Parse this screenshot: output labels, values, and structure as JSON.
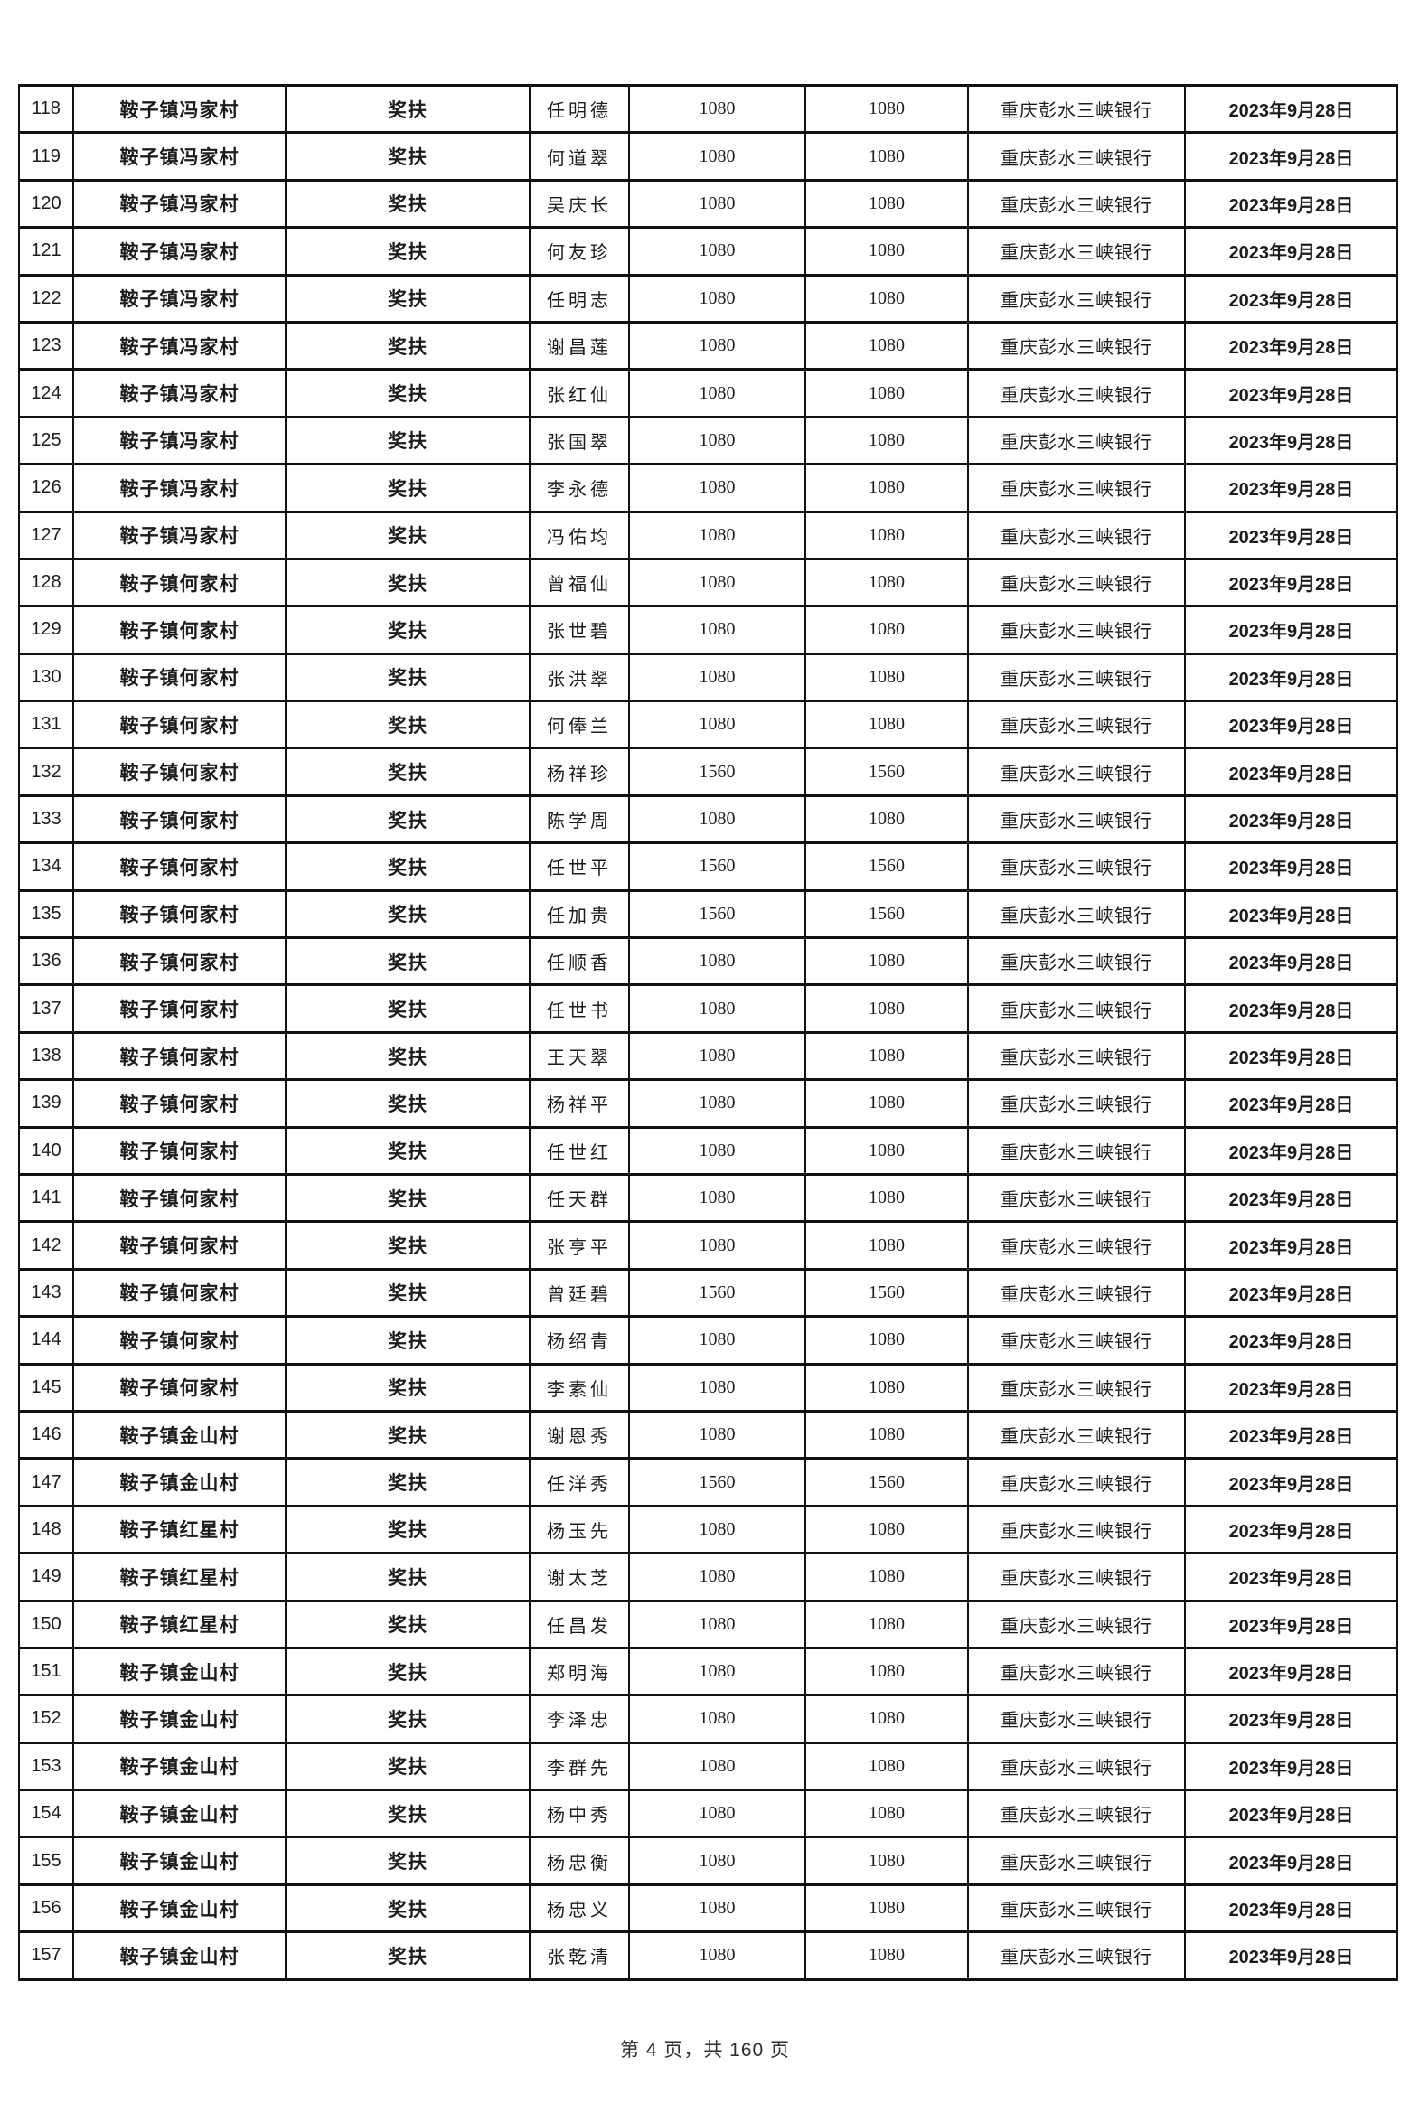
{
  "page": {
    "footer": "第 4 页，共 160 页"
  },
  "table": {
    "column_keys": [
      "num",
      "village",
      "type",
      "name",
      "amount1",
      "amount2",
      "bank",
      "date"
    ],
    "rows": [
      {
        "num": "118",
        "village": "鞍子镇冯家村",
        "type": "奖扶",
        "name": "任明德",
        "amount1": "1080",
        "amount2": "1080",
        "bank": "重庆彭水三峡银行",
        "date": "2023年9月28日"
      },
      {
        "num": "119",
        "village": "鞍子镇冯家村",
        "type": "奖扶",
        "name": "何道翠",
        "amount1": "1080",
        "amount2": "1080",
        "bank": "重庆彭水三峡银行",
        "date": "2023年9月28日"
      },
      {
        "num": "120",
        "village": "鞍子镇冯家村",
        "type": "奖扶",
        "name": "吴庆长",
        "amount1": "1080",
        "amount2": "1080",
        "bank": "重庆彭水三峡银行",
        "date": "2023年9月28日"
      },
      {
        "num": "121",
        "village": "鞍子镇冯家村",
        "type": "奖扶",
        "name": "何友珍",
        "amount1": "1080",
        "amount2": "1080",
        "bank": "重庆彭水三峡银行",
        "date": "2023年9月28日"
      },
      {
        "num": "122",
        "village": "鞍子镇冯家村",
        "type": "奖扶",
        "name": "任明志",
        "amount1": "1080",
        "amount2": "1080",
        "bank": "重庆彭水三峡银行",
        "date": "2023年9月28日"
      },
      {
        "num": "123",
        "village": "鞍子镇冯家村",
        "type": "奖扶",
        "name": "谢昌莲",
        "amount1": "1080",
        "amount2": "1080",
        "bank": "重庆彭水三峡银行",
        "date": "2023年9月28日"
      },
      {
        "num": "124",
        "village": "鞍子镇冯家村",
        "type": "奖扶",
        "name": "张红仙",
        "amount1": "1080",
        "amount2": "1080",
        "bank": "重庆彭水三峡银行",
        "date": "2023年9月28日"
      },
      {
        "num": "125",
        "village": "鞍子镇冯家村",
        "type": "奖扶",
        "name": "张国翠",
        "amount1": "1080",
        "amount2": "1080",
        "bank": "重庆彭水三峡银行",
        "date": "2023年9月28日"
      },
      {
        "num": "126",
        "village": "鞍子镇冯家村",
        "type": "奖扶",
        "name": "李永德",
        "amount1": "1080",
        "amount2": "1080",
        "bank": "重庆彭水三峡银行",
        "date": "2023年9月28日"
      },
      {
        "num": "127",
        "village": "鞍子镇冯家村",
        "type": "奖扶",
        "name": "冯佑均",
        "amount1": "1080",
        "amount2": "1080",
        "bank": "重庆彭水三峡银行",
        "date": "2023年9月28日"
      },
      {
        "num": "128",
        "village": "鞍子镇何家村",
        "type": "奖扶",
        "name": "曾福仙",
        "amount1": "1080",
        "amount2": "1080",
        "bank": "重庆彭水三峡银行",
        "date": "2023年9月28日"
      },
      {
        "num": "129",
        "village": "鞍子镇何家村",
        "type": "奖扶",
        "name": "张世碧",
        "amount1": "1080",
        "amount2": "1080",
        "bank": "重庆彭水三峡银行",
        "date": "2023年9月28日"
      },
      {
        "num": "130",
        "village": "鞍子镇何家村",
        "type": "奖扶",
        "name": "张洪翠",
        "amount1": "1080",
        "amount2": "1080",
        "bank": "重庆彭水三峡银行",
        "date": "2023年9月28日"
      },
      {
        "num": "131",
        "village": "鞍子镇何家村",
        "type": "奖扶",
        "name": "何俸兰",
        "amount1": "1080",
        "amount2": "1080",
        "bank": "重庆彭水三峡银行",
        "date": "2023年9月28日"
      },
      {
        "num": "132",
        "village": "鞍子镇何家村",
        "type": "奖扶",
        "name": "杨祥珍",
        "amount1": "1560",
        "amount2": "1560",
        "bank": "重庆彭水三峡银行",
        "date": "2023年9月28日"
      },
      {
        "num": "133",
        "village": "鞍子镇何家村",
        "type": "奖扶",
        "name": "陈学周",
        "amount1": "1080",
        "amount2": "1080",
        "bank": "重庆彭水三峡银行",
        "date": "2023年9月28日"
      },
      {
        "num": "134",
        "village": "鞍子镇何家村",
        "type": "奖扶",
        "name": "任世平",
        "amount1": "1560",
        "amount2": "1560",
        "bank": "重庆彭水三峡银行",
        "date": "2023年9月28日"
      },
      {
        "num": "135",
        "village": "鞍子镇何家村",
        "type": "奖扶",
        "name": "任加贵",
        "amount1": "1560",
        "amount2": "1560",
        "bank": "重庆彭水三峡银行",
        "date": "2023年9月28日"
      },
      {
        "num": "136",
        "village": "鞍子镇何家村",
        "type": "奖扶",
        "name": "任顺香",
        "amount1": "1080",
        "amount2": "1080",
        "bank": "重庆彭水三峡银行",
        "date": "2023年9月28日"
      },
      {
        "num": "137",
        "village": "鞍子镇何家村",
        "type": "奖扶",
        "name": "任世书",
        "amount1": "1080",
        "amount2": "1080",
        "bank": "重庆彭水三峡银行",
        "date": "2023年9月28日"
      },
      {
        "num": "138",
        "village": "鞍子镇何家村",
        "type": "奖扶",
        "name": "王天翠",
        "amount1": "1080",
        "amount2": "1080",
        "bank": "重庆彭水三峡银行",
        "date": "2023年9月28日"
      },
      {
        "num": "139",
        "village": "鞍子镇何家村",
        "type": "奖扶",
        "name": "杨祥平",
        "amount1": "1080",
        "amount2": "1080",
        "bank": "重庆彭水三峡银行",
        "date": "2023年9月28日"
      },
      {
        "num": "140",
        "village": "鞍子镇何家村",
        "type": "奖扶",
        "name": "任世红",
        "amount1": "1080",
        "amount2": "1080",
        "bank": "重庆彭水三峡银行",
        "date": "2023年9月28日"
      },
      {
        "num": "141",
        "village": "鞍子镇何家村",
        "type": "奖扶",
        "name": "任天群",
        "amount1": "1080",
        "amount2": "1080",
        "bank": "重庆彭水三峡银行",
        "date": "2023年9月28日"
      },
      {
        "num": "142",
        "village": "鞍子镇何家村",
        "type": "奖扶",
        "name": "张亨平",
        "amount1": "1080",
        "amount2": "1080",
        "bank": "重庆彭水三峡银行",
        "date": "2023年9月28日"
      },
      {
        "num": "143",
        "village": "鞍子镇何家村",
        "type": "奖扶",
        "name": "曾廷碧",
        "amount1": "1560",
        "amount2": "1560",
        "bank": "重庆彭水三峡银行",
        "date": "2023年9月28日"
      },
      {
        "num": "144",
        "village": "鞍子镇何家村",
        "type": "奖扶",
        "name": "杨绍青",
        "amount1": "1080",
        "amount2": "1080",
        "bank": "重庆彭水三峡银行",
        "date": "2023年9月28日"
      },
      {
        "num": "145",
        "village": "鞍子镇何家村",
        "type": "奖扶",
        "name": "李素仙",
        "amount1": "1080",
        "amount2": "1080",
        "bank": "重庆彭水三峡银行",
        "date": "2023年9月28日"
      },
      {
        "num": "146",
        "village": "鞍子镇金山村",
        "type": "奖扶",
        "name": "谢恩秀",
        "amount1": "1080",
        "amount2": "1080",
        "bank": "重庆彭水三峡银行",
        "date": "2023年9月28日"
      },
      {
        "num": "147",
        "village": "鞍子镇金山村",
        "type": "奖扶",
        "name": "任洋秀",
        "amount1": "1560",
        "amount2": "1560",
        "bank": "重庆彭水三峡银行",
        "date": "2023年9月28日"
      },
      {
        "num": "148",
        "village": "鞍子镇红星村",
        "type": "奖扶",
        "name": "杨玉先",
        "amount1": "1080",
        "amount2": "1080",
        "bank": "重庆彭水三峡银行",
        "date": "2023年9月28日"
      },
      {
        "num": "149",
        "village": "鞍子镇红星村",
        "type": "奖扶",
        "name": "谢太芝",
        "amount1": "1080",
        "amount2": "1080",
        "bank": "重庆彭水三峡银行",
        "date": "2023年9月28日"
      },
      {
        "num": "150",
        "village": "鞍子镇红星村",
        "type": "奖扶",
        "name": "任昌发",
        "amount1": "1080",
        "amount2": "1080",
        "bank": "重庆彭水三峡银行",
        "date": "2023年9月28日"
      },
      {
        "num": "151",
        "village": "鞍子镇金山村",
        "type": "奖扶",
        "name": "郑明海",
        "amount1": "1080",
        "amount2": "1080",
        "bank": "重庆彭水三峡银行",
        "date": "2023年9月28日"
      },
      {
        "num": "152",
        "village": "鞍子镇金山村",
        "type": "奖扶",
        "name": "李泽忠",
        "amount1": "1080",
        "amount2": "1080",
        "bank": "重庆彭水三峡银行",
        "date": "2023年9月28日"
      },
      {
        "num": "153",
        "village": "鞍子镇金山村",
        "type": "奖扶",
        "name": "李群先",
        "amount1": "1080",
        "amount2": "1080",
        "bank": "重庆彭水三峡银行",
        "date": "2023年9月28日"
      },
      {
        "num": "154",
        "village": "鞍子镇金山村",
        "type": "奖扶",
        "name": "杨中秀",
        "amount1": "1080",
        "amount2": "1080",
        "bank": "重庆彭水三峡银行",
        "date": "2023年9月28日"
      },
      {
        "num": "155",
        "village": "鞍子镇金山村",
        "type": "奖扶",
        "name": "杨忠衡",
        "amount1": "1080",
        "amount2": "1080",
        "bank": "重庆彭水三峡银行",
        "date": "2023年9月28日"
      },
      {
        "num": "156",
        "village": "鞍子镇金山村",
        "type": "奖扶",
        "name": "杨忠义",
        "amount1": "1080",
        "amount2": "1080",
        "bank": "重庆彭水三峡银行",
        "date": "2023年9月28日"
      },
      {
        "num": "157",
        "village": "鞍子镇金山村",
        "type": "奖扶",
        "name": "张乾清",
        "amount1": "1080",
        "amount2": "1080",
        "bank": "重庆彭水三峡银行",
        "date": "2023年9月28日"
      }
    ]
  }
}
